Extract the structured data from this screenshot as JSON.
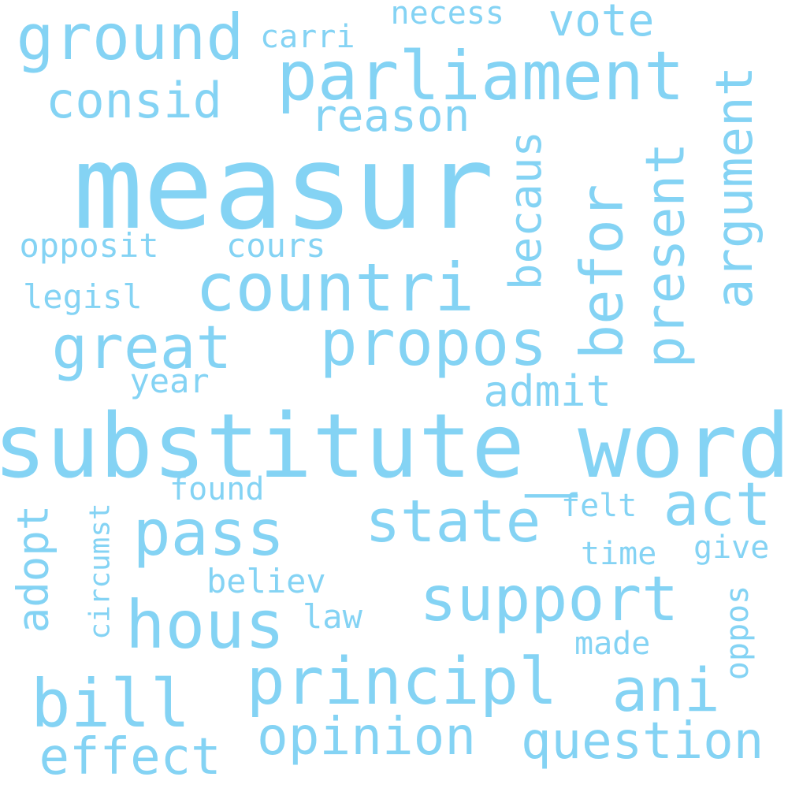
{
  "word_color": "#84d3f4",
  "background_color": "#ffffff",
  "orientations": [
    "horizontal",
    "vertical"
  ],
  "words": [
    {
      "text": "measur",
      "orientation": "horizontal"
    },
    {
      "text": "substitute_word",
      "orientation": "horizontal"
    },
    {
      "text": "parliament",
      "orientation": "horizontal"
    },
    {
      "text": "countri",
      "orientation": "horizontal"
    },
    {
      "text": "ground",
      "orientation": "horizontal"
    },
    {
      "text": "propos",
      "orientation": "horizontal"
    },
    {
      "text": "great",
      "orientation": "horizontal"
    },
    {
      "text": "principl",
      "orientation": "horizontal"
    },
    {
      "text": "pass",
      "orientation": "horizontal"
    },
    {
      "text": "hous",
      "orientation": "horizontal"
    },
    {
      "text": "support",
      "orientation": "horizontal"
    },
    {
      "text": "state",
      "orientation": "horizontal"
    },
    {
      "text": "act",
      "orientation": "horizontal"
    },
    {
      "text": "bill",
      "orientation": "horizontal"
    },
    {
      "text": "question",
      "orientation": "horizontal"
    },
    {
      "text": "opinion",
      "orientation": "horizontal"
    },
    {
      "text": "effect",
      "orientation": "horizontal"
    },
    {
      "text": "ani",
      "orientation": "horizontal"
    },
    {
      "text": "consid",
      "orientation": "horizontal"
    },
    {
      "text": "argument",
      "orientation": "vertical"
    },
    {
      "text": "present",
      "orientation": "vertical"
    },
    {
      "text": "befor",
      "orientation": "vertical"
    },
    {
      "text": "becaus",
      "orientation": "vertical"
    },
    {
      "text": "vote",
      "orientation": "horizontal"
    },
    {
      "text": "reason",
      "orientation": "horizontal"
    },
    {
      "text": "admit",
      "orientation": "horizontal"
    },
    {
      "text": "adopt",
      "orientation": "vertical"
    },
    {
      "text": "opposit",
      "orientation": "horizontal"
    },
    {
      "text": "cours",
      "orientation": "horizontal"
    },
    {
      "text": "legisl",
      "orientation": "horizontal"
    },
    {
      "text": "carri",
      "orientation": "horizontal"
    },
    {
      "text": "necess",
      "orientation": "horizontal"
    },
    {
      "text": "year",
      "orientation": "horizontal"
    },
    {
      "text": "found",
      "orientation": "horizontal"
    },
    {
      "text": "felt",
      "orientation": "horizontal"
    },
    {
      "text": "believ",
      "orientation": "horizontal"
    },
    {
      "text": "circumst",
      "orientation": "vertical"
    },
    {
      "text": "time",
      "orientation": "horizontal"
    },
    {
      "text": "give",
      "orientation": "horizontal"
    },
    {
      "text": "law",
      "orientation": "horizontal"
    },
    {
      "text": "made",
      "orientation": "horizontal"
    },
    {
      "text": "oppos",
      "orientation": "vertical"
    }
  ]
}
